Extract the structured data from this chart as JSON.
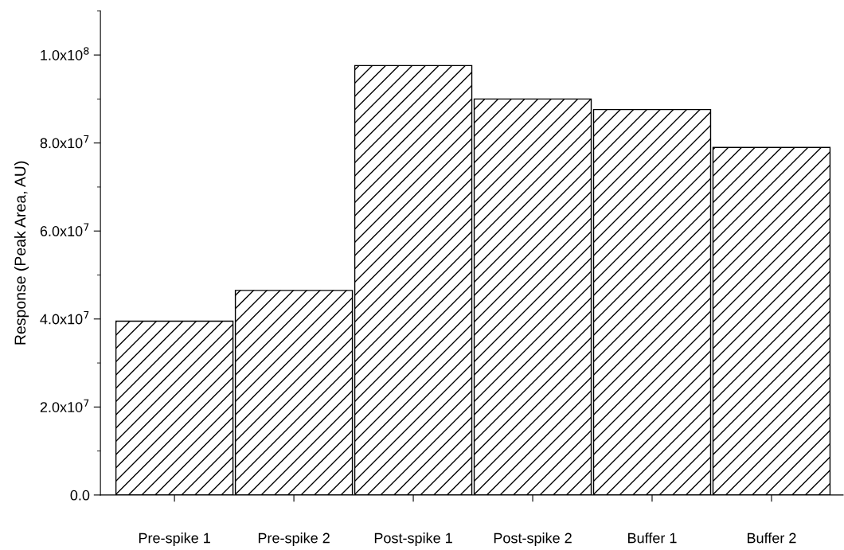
{
  "chart_data": {
    "type": "bar",
    "ylabel": "Response (Peak Area, AU)",
    "categories": [
      "Pre-spike 1",
      "Pre-spike 2",
      "Post-spike 1",
      "Post-spike 2",
      "Buffer 1",
      "Buffer 2"
    ],
    "values": [
      39500000,
      46500000,
      97600000,
      90000000,
      87600000,
      79000000
    ],
    "ylim": [
      0,
      110000000
    ],
    "yticks": [
      {
        "value": 0,
        "label": "0.0"
      },
      {
        "value": 20000000,
        "label": "2.0x10$^{7}$"
      },
      {
        "value": 40000000,
        "label": "4.0x10$^{7}$"
      },
      {
        "value": 60000000,
        "label": "6.0x10$^{7}$"
      },
      {
        "value": 80000000,
        "label": "8.0x10$^{7}$"
      },
      {
        "value": 100000000,
        "label": "1.0x10$^{8}$"
      }
    ],
    "grid": false
  }
}
